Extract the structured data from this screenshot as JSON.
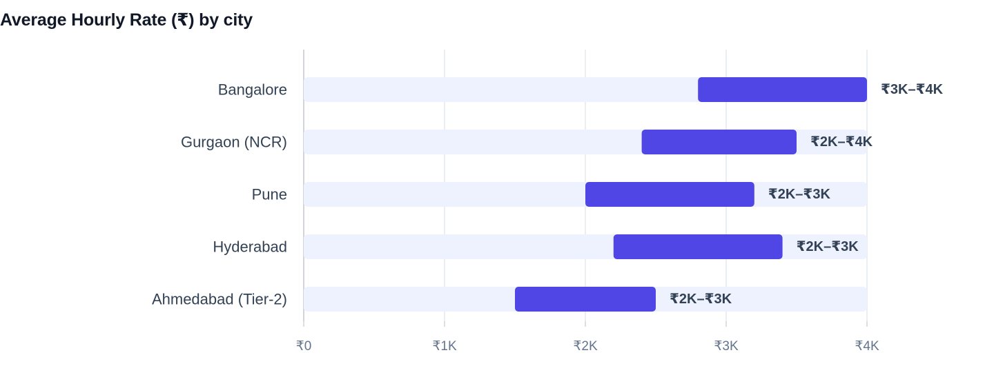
{
  "chart_data": {
    "type": "bar",
    "title": "Average Hourly Rate (₹) by city",
    "xlabel": "",
    "ylabel": "",
    "xlim": [
      0,
      4000
    ],
    "x_ticks": [
      0,
      1000,
      2000,
      3000,
      4000
    ],
    "x_tick_labels": [
      "₹0",
      "₹1K",
      "₹2K",
      "₹3K",
      "₹4K"
    ],
    "grid": true,
    "categories": [
      "Bangalore",
      "Gurgaon (NCR)",
      "Pune",
      "Hyderabad",
      "Ahmedabad (Tier-2)"
    ],
    "ranges": [
      {
        "low": 2800,
        "high": 4000,
        "label": "₹3K–₹4K"
      },
      {
        "low": 2400,
        "high": 3500,
        "label": "₹2K–₹4K"
      },
      {
        "low": 2000,
        "high": 3200,
        "label": "₹2K–₹3K"
      },
      {
        "low": 2200,
        "high": 3400,
        "label": "₹2K–₹3K"
      },
      {
        "low": 1500,
        "high": 2500,
        "label": "₹2K–₹3K"
      }
    ],
    "colors": {
      "range_bar": "#4f46e5",
      "track": "#eef2ff",
      "grid": "#e2e8f0",
      "axis": "#d1d5db"
    }
  }
}
